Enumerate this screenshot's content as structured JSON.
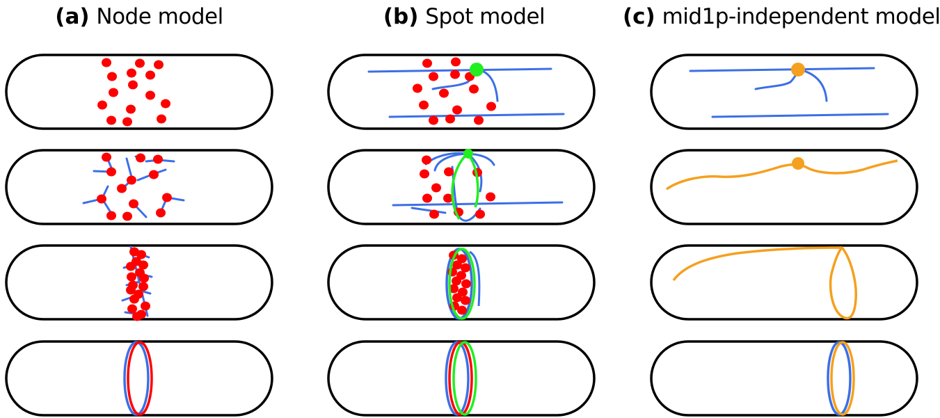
{
  "panels": [
    {
      "label": "(a)",
      "title": "Node model"
    },
    {
      "label": "(b)",
      "title": "Spot model"
    },
    {
      "label": "(c)",
      "title": "mid1p-independent model"
    }
  ],
  "colors": {
    "outline": "#000000",
    "node": "#ff0000",
    "actin": "#3c6fe6",
    "spot": "#22ee22",
    "independent": "#f5a01e"
  }
}
